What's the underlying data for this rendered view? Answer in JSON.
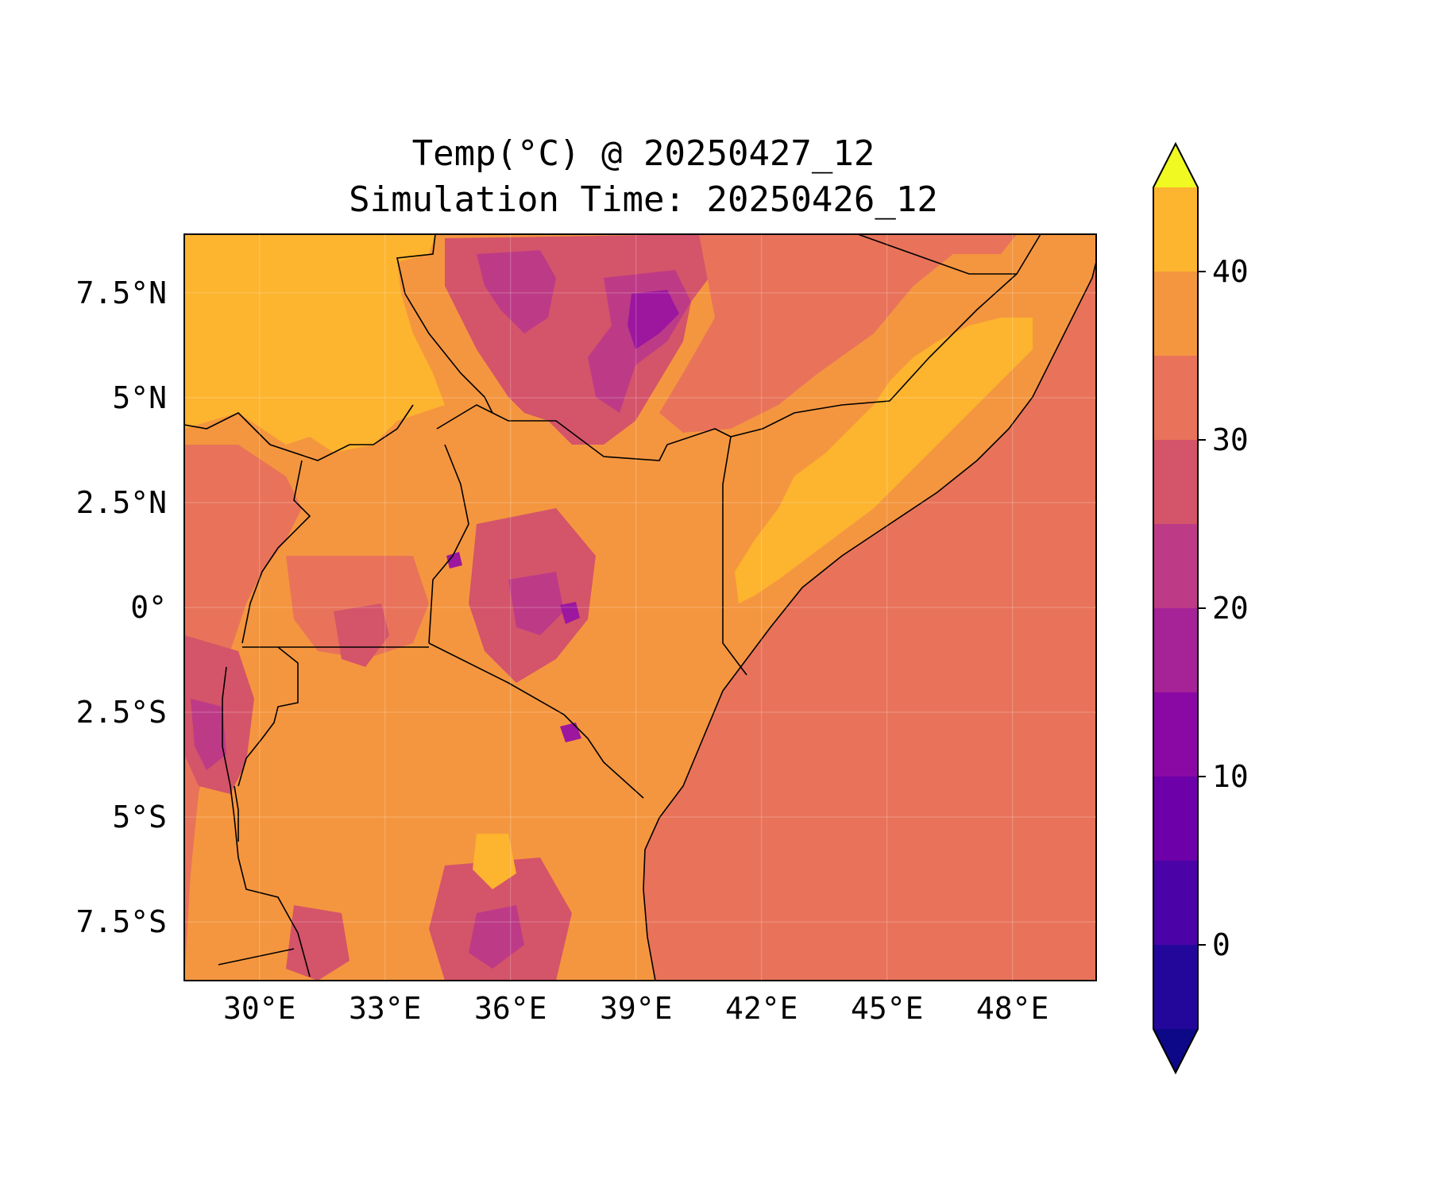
{
  "title": "Temp(°C) @ 20250427_12",
  "subtitle": "Simulation Time: 20250426_12",
  "map": {
    "lon_range": [
      28.2,
      50.0
    ],
    "lat_range": [
      -8.9,
      8.9
    ],
    "lon_ticks": [
      {
        "value": 30,
        "label": "30°E"
      },
      {
        "value": 33,
        "label": "33°E"
      },
      {
        "value": 36,
        "label": "36°E"
      },
      {
        "value": 39,
        "label": "39°E"
      },
      {
        "value": 42,
        "label": "42°E"
      },
      {
        "value": 45,
        "label": "45°E"
      },
      {
        "value": 48,
        "label": "48°E"
      }
    ],
    "lat_ticks": [
      {
        "value": 7.5,
        "label": "7.5°N"
      },
      {
        "value": 5,
        "label": "5°N"
      },
      {
        "value": 2.5,
        "label": "2.5°N"
      },
      {
        "value": 0,
        "label": "0°"
      },
      {
        "value": -2.5,
        "label": "2.5°S"
      },
      {
        "value": -5,
        "label": "5°S"
      },
      {
        "value": -7.5,
        "label": "7.5°S"
      }
    ],
    "land_base_color": "#f4963f",
    "ocean_color": "#e8735a",
    "colors": {
      "c20_25": "#d4546a",
      "c15_20": "#bd3b86",
      "c10_15": "#9c179e",
      "c35_40": "#fdb42f",
      "c25_30": "#e8735a"
    }
  },
  "colorbar": {
    "levels": [
      -5,
      0,
      5,
      10,
      15,
      20,
      25,
      30,
      35,
      40,
      45
    ],
    "colors": [
      "#23079a",
      "#4b03a7",
      "#6d00a8",
      "#8a09a5",
      "#a52297",
      "#bd3b86",
      "#d4546a",
      "#e8735a",
      "#f4963f",
      "#fdb42f",
      "#f4e424"
    ],
    "extend_low_color": "#0d0887",
    "extend_high_color": "#f0f921",
    "ticks": [
      {
        "value": 0,
        "label": "0"
      },
      {
        "value": 10,
        "label": "10"
      },
      {
        "value": 20,
        "label": "20"
      },
      {
        "value": 30,
        "label": "30"
      },
      {
        "value": 40,
        "label": "40"
      }
    ]
  }
}
